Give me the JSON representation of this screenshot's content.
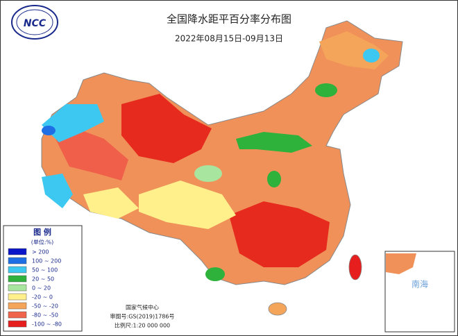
{
  "logo": "NCC",
  "title": "全国降水距平百分率分布图",
  "subtitle": "2022年08月15日-09月13日",
  "legend": {
    "title": "图 例",
    "unit": "(单位:%)",
    "items": [
      {
        "label": "> 200",
        "color": "#0a14c8"
      },
      {
        "label": "100 ~ 200",
        "color": "#1e6ee6"
      },
      {
        "label": "50 ~ 100",
        "color": "#3cc8f0"
      },
      {
        "label": "20 ~ 50",
        "color": "#2eb23c"
      },
      {
        "label": "0 ~ 20",
        "color": "#a8e6a0"
      },
      {
        "label": "-20 ~ 0",
        "color": "#fff08c"
      },
      {
        "label": "-50 ~ -20",
        "color": "#f5a55a"
      },
      {
        "label": "-80 ~ -50",
        "color": "#f0644b"
      },
      {
        "label": "-100 ~ -80",
        "color": "#e61e1e"
      }
    ]
  },
  "footer": [
    "国家气候中心",
    "审图号:GS(2019)1786号",
    "比例尺:1:20 000 000"
  ],
  "inset": "南海"
}
